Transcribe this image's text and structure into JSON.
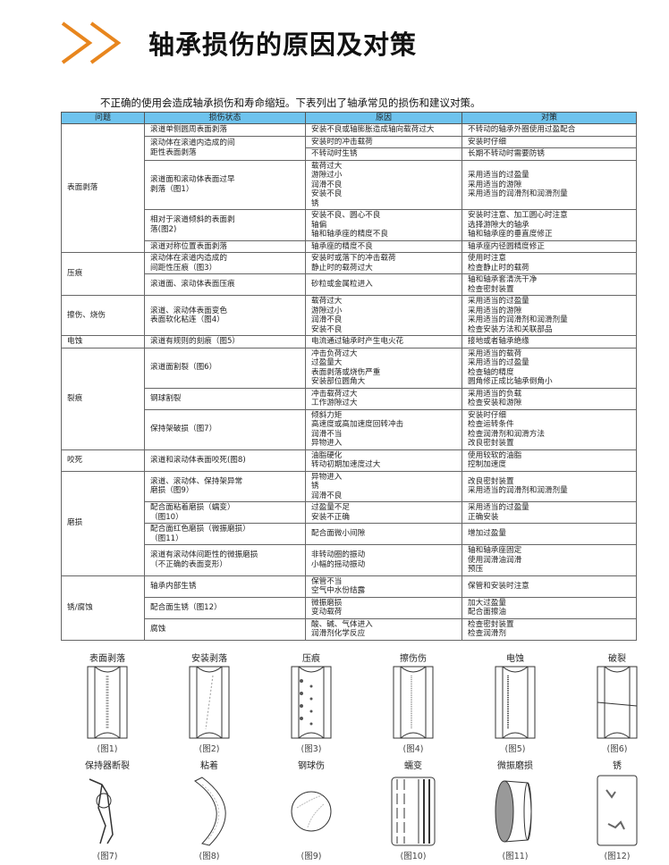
{
  "header": {
    "title": "轴承损伤的原因及对策",
    "icon": "double-chevron-icon",
    "accent": "#e8861e"
  },
  "intro": "不正确的使用会造成轴承损伤和寿命缩短。下表列出了轴承常见的损伤和建议对策。",
  "table": {
    "header_color": "#6ec3ee",
    "columns": [
      "问题",
      "损伤状态",
      "原因",
      "对策"
    ],
    "groups": [
      {
        "problem": "表面剥落",
        "rows": [
          {
            "state": [
              "滚道单侧圆周表面剥落"
            ],
            "sub": [
              {
                "causes": [
                  "安装不良或轴膨胀造成轴向载荷过大"
                ],
                "measures": [
                  "不转动的轴承外圈使用过盈配合"
                ]
              }
            ]
          },
          {
            "state": [
              "滚动体在滚道内造成的间",
              "距性表面剥落"
            ],
            "sub": [
              {
                "causes": [
                  "安装时的冲击载荷"
                ],
                "measures": [
                  "安装时仔细"
                ]
              },
              {
                "causes": [
                  "不转动时生锈"
                ],
                "measures": [
                  "长期不转动时需要防锈"
                ]
              }
            ]
          },
          {
            "state": [
              "滚道面和滚动体表面过早",
              "剥落（图1）"
            ],
            "sub": [
              {
                "causes": [
                  "载荷过大",
                  "游隙过小",
                  "润滑不良",
                  "安装不良",
                  "锈"
                ],
                "measures": [
                  "采用适当的过盈量",
                  "采用适当的游隙",
                  "采用适当的润滑剂和润滑剂量"
                ]
              }
            ]
          },
          {
            "state": [
              "相对于滚道倾斜的表面剥",
              "落(图2)"
            ],
            "sub": [
              {
                "causes": [
                  "安装不良、圆心不良",
                  "轴偏",
                  "轴和轴承座的精度不良"
                ],
                "measures": [
                  "安装时注意、加工圆心时注意",
                  "选择游隙大的轴承",
                  "轴和轴承座的垂直度修正"
                ]
              }
            ]
          },
          {
            "state": [
              "滚道对称位置表面剥落"
            ],
            "sub": [
              {
                "causes": [
                  "轴承座的精度不良"
                ],
                "measures": [
                  "轴承座内径圆精度修正"
                ]
              }
            ]
          }
        ]
      },
      {
        "problem": "压痕",
        "rows": [
          {
            "state": [
              "滚动体在滚道内造成的",
              "间距性压痕（图3）"
            ],
            "sub": [
              {
                "causes": [
                  "安装时或落下的冲击载荷",
                  "静止时的载荷过大"
                ],
                "measures": [
                  "使用时注意",
                  "检查静止时的载荷"
                ]
              }
            ]
          },
          {
            "state": [
              "滚道面、滚动体表面压痕"
            ],
            "sub": [
              {
                "causes": [
                  "砂粒或金属粒进入"
                ],
                "measures": [
                  "轴和轴承套清洗干净",
                  "检查密封装置"
                ]
              }
            ]
          }
        ]
      },
      {
        "problem": "擦伤、烧伤",
        "rows": [
          {
            "state": [
              "滚道、滚动体表面变色",
              "表面软化粘连（图4）"
            ],
            "sub": [
              {
                "causes": [
                  "载荷过大",
                  "游隙过小",
                  "润滑不良",
                  "安装不良"
                ],
                "measures": [
                  "采用适当的过盈量",
                  "采用适当的游隙",
                  "采用适当的润滑剂和润滑剂量",
                  "检查安装方法和关联部品"
                ]
              }
            ]
          }
        ]
      },
      {
        "problem": "电蚀",
        "rows": [
          {
            "state": [
              "滚道有规则的刻痕（图5）"
            ],
            "sub": [
              {
                "causes": [
                  "电流通过轴承时产生电火花"
                ],
                "measures": [
                  "接地或者轴承绝缘"
                ]
              }
            ]
          }
        ]
      },
      {
        "problem": "裂痕",
        "rows": [
          {
            "state": [
              "滚道面割裂（图6）"
            ],
            "sub": [
              {
                "causes": [
                  "冲击负荷过大",
                  "过盈量大",
                  "表面剥落或烧伤严重",
                  "安装部位圆角大"
                ],
                "measures": [
                  "采用适当的载荷",
                  "采用适当的过盈量",
                  "检查轴的精度",
                  "圆角修正成比轴承倒角小"
                ]
              }
            ]
          },
          {
            "state": [
              "钢球割裂"
            ],
            "sub": [
              {
                "causes": [
                  "冲击载荷过大",
                  "工作游隙过大"
                ],
                "measures": [
                  "采用适当的负载",
                  "检查安装和游隙"
                ]
              }
            ]
          },
          {
            "state": [
              "保持架破损（图7）"
            ],
            "sub": [
              {
                "causes": [
                  "倾斜力矩",
                  "高速度或高加速度回转冲击",
                  "润滑不当",
                  "异物进入"
                ],
                "measures": [
                  "安装时仔细",
                  "检查运转条件",
                  "检查润滑剂和润滑方法",
                  "改良密封装置"
                ]
              }
            ]
          }
        ]
      },
      {
        "problem": "咬死",
        "rows": [
          {
            "state": [
              "滚道和滚动体表面咬死(图8)"
            ],
            "sub": [
              {
                "causes": [
                  "油脂硬化",
                  "转动初期加速度过大"
                ],
                "measures": [
                  "使用较软的油脂",
                  "控制加速度"
                ]
              }
            ]
          }
        ]
      },
      {
        "problem": "磨损",
        "rows": [
          {
            "state": [
              "滚道、滚动体、保持架异常",
              "磨损（图9）"
            ],
            "sub": [
              {
                "causes": [
                  "异物进入",
                  "锈",
                  "润滑不良"
                ],
                "measures": [
                  "改良密封装置",
                  "采用适当的润滑剂和润滑剂量"
                ]
              }
            ]
          },
          {
            "state": [
              "配合面粘着磨损（蠕变）",
              "（图10）"
            ],
            "sub": [
              {
                "causes": [
                  "过盈量不足",
                  "安装不正确"
                ],
                "measures": [
                  "采用适当的过盈量",
                  "正确安装"
                ]
              }
            ]
          },
          {
            "state": [
              "配合面红色磨损（微振磨损）",
              "（图11）"
            ],
            "sub": [
              {
                "causes": [
                  "配合面微小间隙"
                ],
                "measures": [
                  "增加过盈量"
                ]
              }
            ]
          },
          {
            "state": [
              "滚道有滚动体间距性的微振磨损",
              "（不正确的表面变形）"
            ],
            "sub": [
              {
                "causes": [
                  "非转动圈的振动",
                  "小幅的摇动振动"
                ],
                "measures": [
                  "轴和轴承座固定",
                  "使用润滑油润滑",
                  "预压"
                ]
              }
            ]
          }
        ]
      },
      {
        "problem": "锈/腐蚀",
        "rows": [
          {
            "state": [
              "轴承内部生锈"
            ],
            "sub": [
              {
                "causes": [
                  "保管不当",
                  "空气中水份结露"
                ],
                "measures": [
                  "保管和安装时注意"
                ]
              }
            ]
          },
          {
            "state": [
              "配合面生锈（图12）"
            ],
            "sub": [
              {
                "causes": [
                  "微振磨损",
                  "变动载荷"
                ],
                "measures": [
                  "加大过盈量",
                  "配合面擦油"
                ]
              }
            ]
          },
          {
            "state": [
              "腐蚀"
            ],
            "sub": [
              {
                "causes": [
                  "酸、碱、气体进入",
                  "润滑剂化学反应"
                ],
                "measures": [
                  "检查密封装置",
                  "检查润滑剂"
                ]
              }
            ]
          }
        ]
      }
    ]
  },
  "figures": [
    {
      "label": "表面剥落",
      "caption": "(图1)",
      "type": "ring-spall"
    },
    {
      "label": "安装剥落",
      "caption": "(图2)",
      "type": "ring-diagonal"
    },
    {
      "label": "压痕",
      "caption": "(图3)",
      "type": "ring-dents"
    },
    {
      "label": "擦伤伤",
      "caption": "(图4)",
      "type": "ring-smear"
    },
    {
      "label": "电蚀",
      "caption": "(图5)",
      "type": "ring-flute"
    },
    {
      "label": "破裂",
      "caption": "(图6)",
      "type": "ring-crack"
    },
    {
      "label": "保持器断裂",
      "caption": "(图7)",
      "type": "cage"
    },
    {
      "label": "粘着",
      "caption": "(图8)",
      "type": "arc"
    },
    {
      "label": "钢球伤",
      "caption": "(图9)",
      "type": "ball"
    },
    {
      "label": "蠕变",
      "caption": "(图10)",
      "type": "creep"
    },
    {
      "label": "微振磨损",
      "caption": "(图11)",
      "type": "fretting"
    },
    {
      "label": "锈",
      "caption": "(图12)",
      "type": "rust"
    }
  ]
}
